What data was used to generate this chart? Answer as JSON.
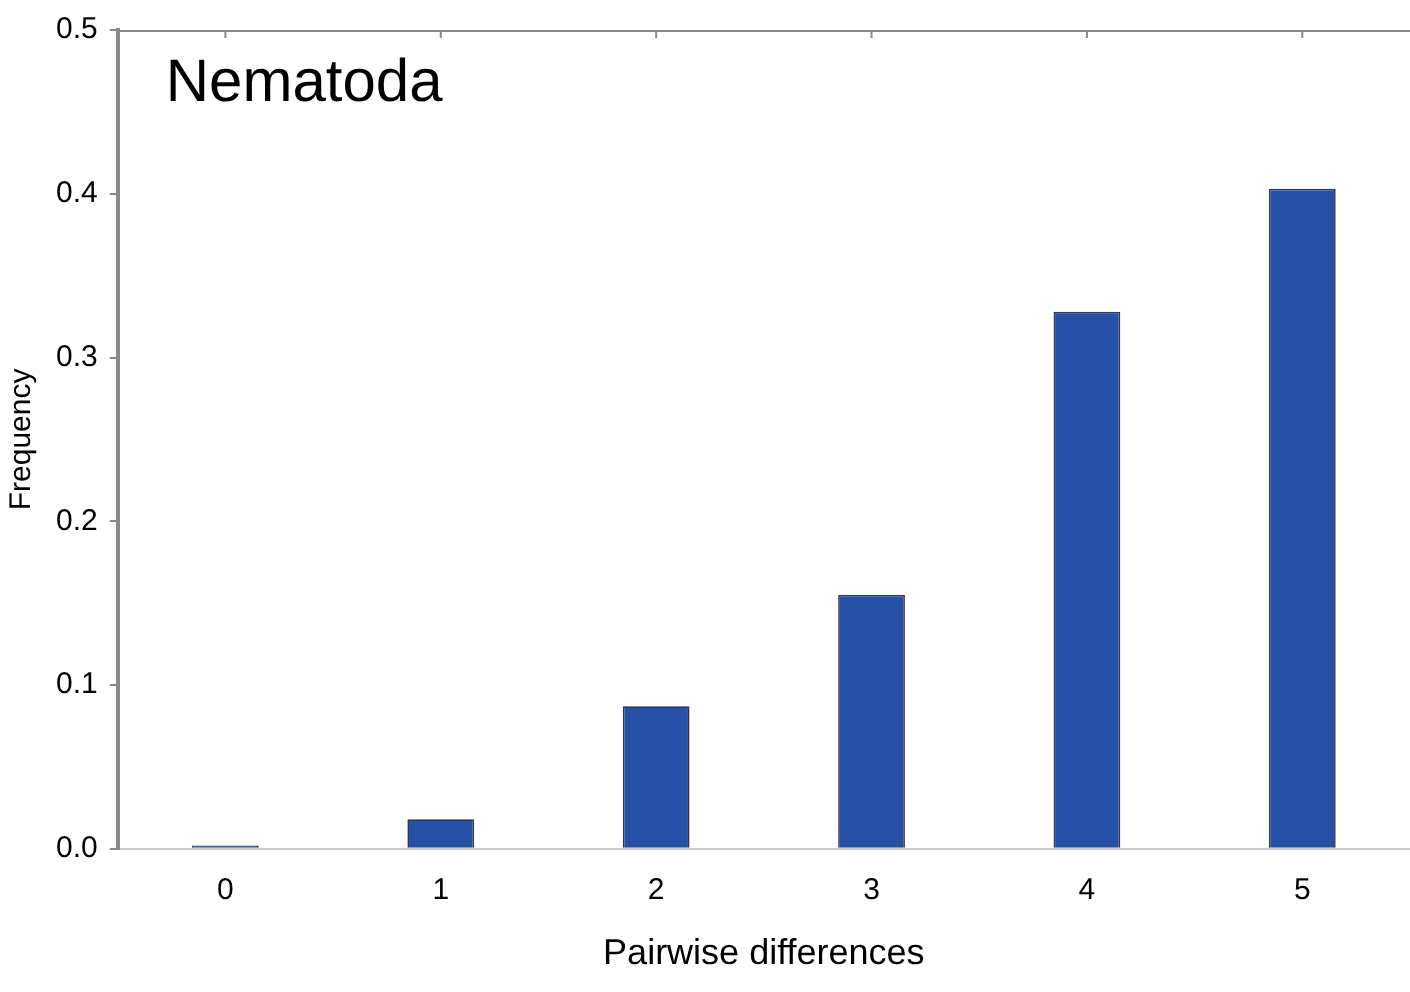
{
  "chart_data": {
    "type": "bar",
    "title": "Nematoda",
    "xlabel": "Pairwise differences",
    "ylabel": "Frequency",
    "categories": [
      "0",
      "1",
      "2",
      "3",
      "4",
      "5"
    ],
    "values": [
      0.002,
      0.018,
      0.087,
      0.155,
      0.328,
      0.403
    ],
    "color": "#2451a6",
    "ylim": [
      0,
      0.5
    ],
    "yticks": [
      {
        "value": 0,
        "label": "0.0"
      },
      {
        "value": 0.1,
        "label": "0.1"
      },
      {
        "value": 0.2,
        "label": "0.2"
      },
      {
        "value": 0.3,
        "label": "0.3"
      },
      {
        "value": 0.4,
        "label": "0.4"
      },
      {
        "value": 0.5,
        "label": "0.5"
      }
    ],
    "grid": false,
    "legend": false
  }
}
